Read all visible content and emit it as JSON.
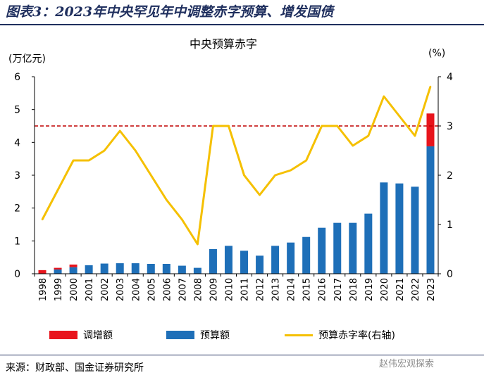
{
  "figure": {
    "title": "图表3：2023年中央罕见年中调整赤字预算、增发国债",
    "source": "来源：财政部、国金证券研究所",
    "watermark": "赵伟宏观探索"
  },
  "colors": {
    "adjust": "#e8141c",
    "budget": "#1e6fb8",
    "rate": "#f5c000",
    "ref": "#c00000",
    "title": "#1f2f5e"
  },
  "chart_data": {
    "type": "bar",
    "title": "中央预算赤字",
    "left_unit": "(万亿元)",
    "right_unit": "(%)",
    "categories": [
      "1998",
      "1999",
      "2000",
      "2001",
      "2002",
      "2003",
      "2004",
      "2005",
      "2006",
      "2007",
      "2008",
      "2009",
      "2010",
      "2011",
      "2012",
      "2013",
      "2014",
      "2015",
      "2016",
      "2017",
      "2018",
      "2019",
      "2020",
      "2021",
      "2022",
      "2023"
    ],
    "ylim": [
      0,
      6
    ],
    "y_ticks": [
      "0",
      "1",
      "2",
      "3",
      "4",
      "5",
      "6"
    ],
    "y2lim": [
      0,
      4
    ],
    "y2_ticks": [
      "0",
      "1",
      "2",
      "3",
      "4"
    ],
    "series": [
      {
        "name": "调增额",
        "type": "bar-stack",
        "axis": "left",
        "values": [
          0.1,
          0.05,
          0.08,
          0,
          0,
          0,
          0,
          0,
          0,
          0,
          0,
          0,
          0,
          0,
          0,
          0,
          0,
          0,
          0,
          0,
          0,
          0,
          0,
          0,
          0,
          1.0
        ]
      },
      {
        "name": "预算额",
        "type": "bar-stack",
        "axis": "left",
        "values": [
          0.01,
          0.13,
          0.2,
          0.26,
          0.31,
          0.32,
          0.32,
          0.3,
          0.3,
          0.245,
          0.18,
          0.75,
          0.85,
          0.7,
          0.55,
          0.85,
          0.95,
          1.12,
          1.4,
          1.55,
          1.55,
          1.83,
          2.78,
          2.75,
          2.65,
          3.88
        ]
      },
      {
        "name": "预算赤字率(右轴)",
        "type": "line",
        "axis": "right",
        "values": [
          1.1,
          1.7,
          2.3,
          2.3,
          2.5,
          2.9,
          2.5,
          2.0,
          1.5,
          1.1,
          0.6,
          3.0,
          3.0,
          2.0,
          1.6,
          2.0,
          2.1,
          2.3,
          3.0,
          3.0,
          2.6,
          2.8,
          3.6,
          3.2,
          2.8,
          3.8
        ]
      }
    ],
    "reference_line": {
      "axis": "right",
      "value": 3.0,
      "style": "dashed"
    },
    "grid": false,
    "legend_position": "bottom"
  }
}
